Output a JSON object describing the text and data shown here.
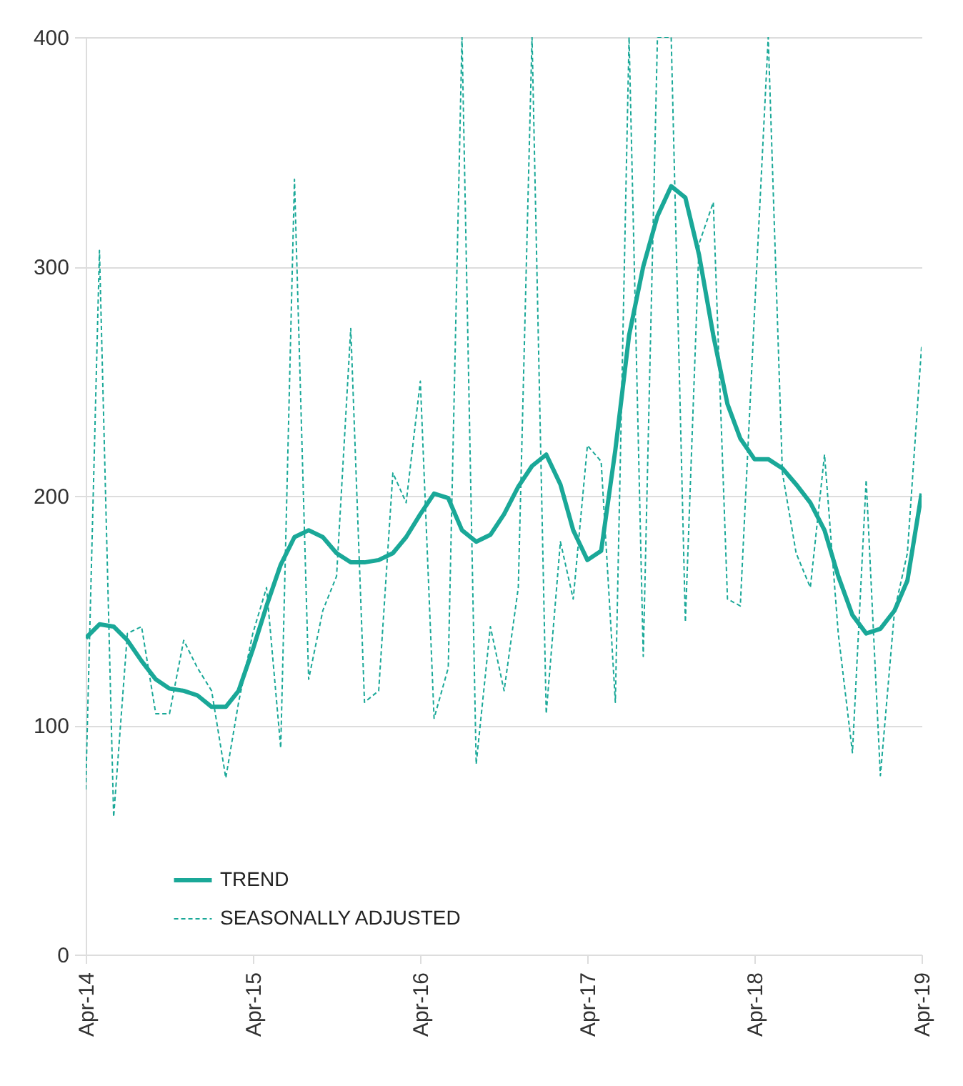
{
  "chart_data": {
    "type": "line",
    "x": [
      "2014-04",
      "2014-05",
      "2014-06",
      "2014-07",
      "2014-08",
      "2014-09",
      "2014-10",
      "2014-11",
      "2014-12",
      "2015-01",
      "2015-02",
      "2015-03",
      "2015-04",
      "2015-05",
      "2015-06",
      "2015-07",
      "2015-08",
      "2015-09",
      "2015-10",
      "2015-11",
      "2015-12",
      "2016-01",
      "2016-02",
      "2016-03",
      "2016-04",
      "2016-05",
      "2016-06",
      "2016-07",
      "2016-08",
      "2016-09",
      "2016-10",
      "2016-11",
      "2016-12",
      "2017-01",
      "2017-02",
      "2017-03",
      "2017-04",
      "2017-05",
      "2017-06",
      "2017-07",
      "2017-08",
      "2017-09",
      "2017-10",
      "2017-11",
      "2017-12",
      "2018-01",
      "2018-02",
      "2018-03",
      "2018-04",
      "2018-05",
      "2018-06",
      "2018-07",
      "2018-08",
      "2018-09",
      "2018-10",
      "2018-11",
      "2018-12",
      "2019-01",
      "2019-02",
      "2019-03",
      "2019-04"
    ],
    "series": [
      {
        "name": "TREND",
        "color": "#1aa898",
        "line_style": "solid",
        "values": [
          138,
          144,
          143,
          137,
          128,
          120,
          116,
          115,
          113,
          108,
          108,
          115,
          133,
          152,
          170,
          182,
          185,
          182,
          175,
          171,
          171,
          172,
          175,
          182,
          192,
          201,
          199,
          185,
          180,
          183,
          192,
          204,
          213,
          218,
          205,
          185,
          172,
          176,
          220,
          270,
          300,
          322,
          335,
          330,
          305,
          270,
          240,
          225,
          216,
          216,
          212,
          205,
          197,
          185,
          165,
          148,
          140,
          142,
          150,
          163,
          201
        ]
      },
      {
        "name": "SEASONALLY ADJUSTED",
        "color": "#1aa898",
        "line_style": "dashed",
        "values": [
          72,
          307,
          60,
          140,
          143,
          105,
          105,
          137,
          125,
          115,
          77,
          110,
          140,
          160,
          90,
          338,
          120,
          150,
          165,
          273,
          110,
          115,
          210,
          197,
          250,
          103,
          125,
          400,
          83,
          143,
          115,
          160,
          400,
          105,
          180,
          155,
          222,
          215,
          110,
          400,
          130,
          400,
          400,
          145,
          310,
          328,
          155,
          152,
          280,
          400,
          210,
          175,
          160,
          218,
          140,
          88,
          207,
          78,
          150,
          175,
          265
        ]
      }
    ],
    "xlim": [
      "2014-04",
      "2019-04"
    ],
    "xticks": [
      {
        "value": "2014-04",
        "label": "Apr-14"
      },
      {
        "value": "2015-04",
        "label": "Apr-15"
      },
      {
        "value": "2016-04",
        "label": "Apr-16"
      },
      {
        "value": "2017-04",
        "label": "Apr-17"
      },
      {
        "value": "2018-04",
        "label": "Apr-18"
      },
      {
        "value": "2019-04",
        "label": "Apr-19"
      }
    ],
    "ylim": [
      0,
      400
    ],
    "yticks": [
      0,
      100,
      200,
      300,
      400
    ],
    "grid": "y",
    "legend": "bottom left",
    "marker": "none"
  }
}
